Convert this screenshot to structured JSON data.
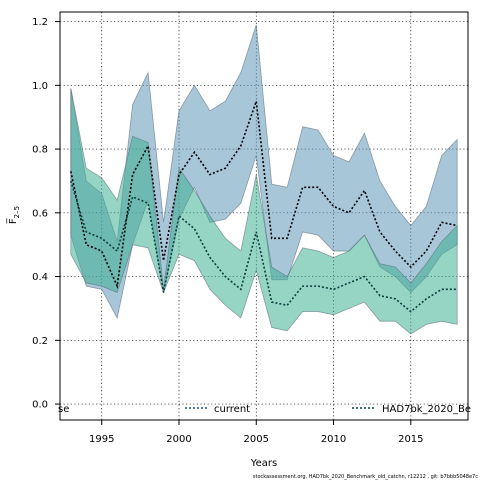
{
  "chart_data": {
    "type": "line",
    "xlabel": "Years",
    "ylabel": "F̅ 2–5",
    "ylabel_main": "F̅",
    "ylabel_sub": "2–5",
    "xlim": [
      1992.3,
      2018.7
    ],
    "ylim": [
      -0.05,
      1.23
    ],
    "xticks": [
      1995,
      2000,
      2005,
      2010,
      2015
    ],
    "yticks": [
      0.0,
      0.2,
      0.4,
      0.6,
      0.8,
      1.0,
      1.2
    ],
    "ytick_labels": [
      "0.0",
      "0.2",
      "0.4",
      "0.6",
      "0.8",
      "1.0",
      "1.2"
    ],
    "grid": true,
    "legend_position": "bottom",
    "legend_left_text": "se",
    "x": [
      1993,
      1994,
      1995,
      1996,
      1997,
      1998,
      1999,
      2000,
      2001,
      2002,
      2003,
      2004,
      2005,
      2006,
      2007,
      2008,
      2009,
      2010,
      2011,
      2012,
      2013,
      2014,
      2015,
      2016,
      2017,
      2018
    ],
    "series": [
      {
        "name": "current",
        "color": "#000000",
        "band_color": "#5e97b8",
        "mean": [
          0.73,
          0.5,
          0.48,
          0.37,
          0.72,
          0.81,
          0.45,
          0.72,
          0.79,
          0.72,
          0.74,
          0.81,
          0.95,
          0.52,
          0.52,
          0.68,
          0.68,
          0.62,
          0.6,
          0.67,
          0.54,
          0.48,
          0.43,
          0.48,
          0.57,
          0.56
        ],
        "lower": [
          0.53,
          0.37,
          0.36,
          0.27,
          0.5,
          0.64,
          0.35,
          0.58,
          0.68,
          0.57,
          0.58,
          0.63,
          0.78,
          0.39,
          0.39,
          0.54,
          0.53,
          0.48,
          0.48,
          0.53,
          0.43,
          0.4,
          0.35,
          0.4,
          0.47,
          0.5
        ],
        "upper": [
          0.99,
          0.7,
          0.66,
          0.51,
          0.94,
          1.04,
          0.57,
          0.92,
          1.0,
          0.92,
          0.95,
          1.04,
          1.19,
          0.69,
          0.68,
          0.87,
          0.86,
          0.78,
          0.76,
          0.85,
          0.7,
          0.62,
          0.56,
          0.62,
          0.78,
          0.83
        ]
      },
      {
        "name": "HAD7bk_2020_Be",
        "color": "#0b3d3d",
        "band_color": "#3fb094",
        "mean": [
          0.7,
          0.54,
          0.52,
          0.48,
          0.65,
          0.63,
          0.35,
          0.59,
          0.55,
          0.46,
          0.4,
          0.36,
          0.54,
          0.32,
          0.31,
          0.37,
          0.37,
          0.36,
          0.38,
          0.4,
          0.34,
          0.33,
          0.29,
          0.33,
          0.36,
          0.36
        ],
        "lower": [
          0.47,
          0.38,
          0.37,
          0.35,
          0.5,
          0.49,
          0.35,
          0.47,
          0.45,
          0.36,
          0.31,
          0.27,
          0.42,
          0.24,
          0.23,
          0.29,
          0.29,
          0.28,
          0.3,
          0.32,
          0.26,
          0.26,
          0.22,
          0.25,
          0.26,
          0.25
        ],
        "upper": [
          0.99,
          0.74,
          0.71,
          0.64,
          0.84,
          0.82,
          0.36,
          0.74,
          0.67,
          0.59,
          0.52,
          0.48,
          0.72,
          0.43,
          0.4,
          0.49,
          0.48,
          0.46,
          0.48,
          0.53,
          0.44,
          0.43,
          0.38,
          0.44,
          0.51,
          0.56
        ]
      }
    ]
  },
  "footer": "stockassessment.org, HAD7bk_2020_Benchmark_old_catchn, r12212 , git: b7bbb5048e7c"
}
